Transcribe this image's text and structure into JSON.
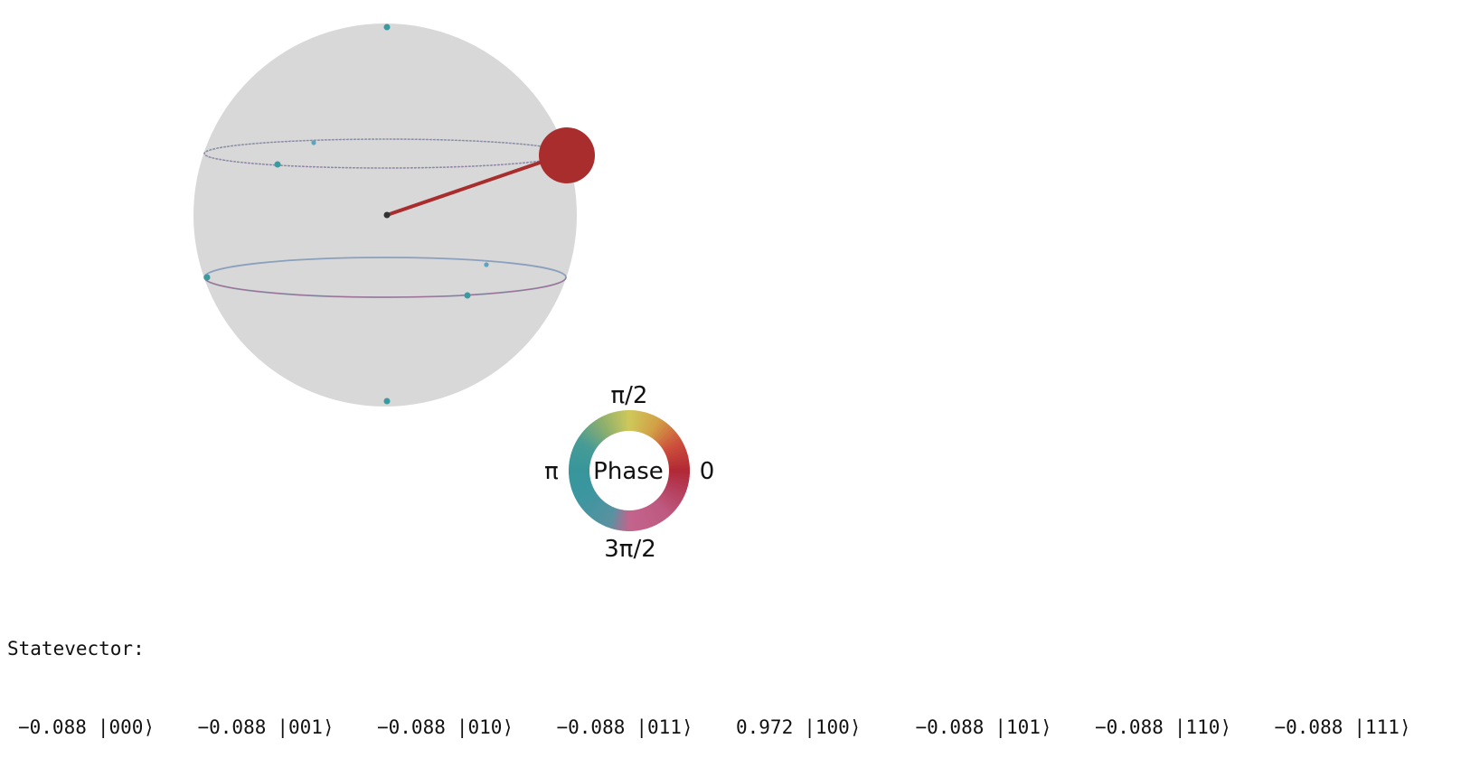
{
  "qsphere": {
    "sphere_color": "#d8d8d8",
    "state_color": "#a92d2d",
    "node_color": "#3a9aa0",
    "highlighted_state": "|100⟩"
  },
  "phase_wheel": {
    "center_label": "Phase",
    "label_0": "0",
    "label_pi_half": "π/2",
    "label_pi": "π",
    "label_3pi_half": "3π/2"
  },
  "statevector": {
    "title": "Statevector:",
    "terms": [
      {
        "amplitude": "−0.088",
        "ket": "|000⟩"
      },
      {
        "amplitude": "−0.088",
        "ket": "|001⟩"
      },
      {
        "amplitude": "−0.088",
        "ket": "|010⟩"
      },
      {
        "amplitude": "−0.088",
        "ket": "|011⟩"
      },
      {
        "amplitude": "0.972",
        "ket": "|100⟩"
      },
      {
        "amplitude": "−0.088",
        "ket": "|101⟩"
      },
      {
        "amplitude": "−0.088",
        "ket": "|110⟩"
      },
      {
        "amplitude": "−0.088",
        "ket": "|111⟩"
      }
    ]
  }
}
